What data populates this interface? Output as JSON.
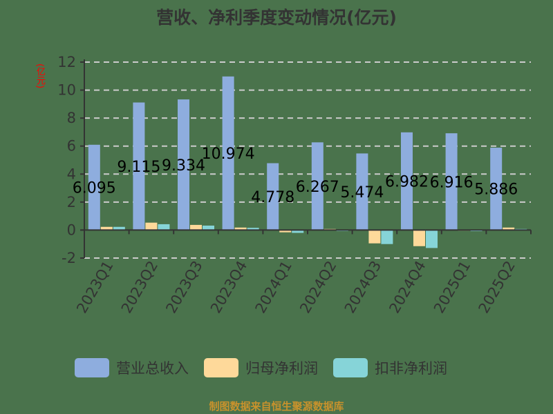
{
  "title": "营收、净利季度变动情况(亿元)",
  "unit_label": "(亿元)",
  "footer": "制图数据来自恒生聚源数据库",
  "legend": [
    {
      "label": "营业总收入",
      "color": "#8eadde"
    },
    {
      "label": "归母净利润",
      "color": "#fed99a"
    },
    {
      "label": "扣非净利润",
      "color": "#86d4d8"
    }
  ],
  "chart_data": {
    "type": "bar",
    "title": "营收、净利季度变动情况(亿元)",
    "xlabel": "",
    "ylabel": "(亿元)",
    "ylim": [
      -2,
      12
    ],
    "yticks": [
      -2,
      0,
      2,
      4,
      6,
      8,
      10,
      12
    ],
    "grid": true,
    "legend_position": "bottom",
    "categories": [
      "2023Q1",
      "2023Q2",
      "2023Q3",
      "2023Q4",
      "2024Q1",
      "2024Q2",
      "2024Q3",
      "2024Q4",
      "2025Q1",
      "2025Q2"
    ],
    "series": [
      {
        "name": "营业总收入",
        "color": "#8eadde",
        "values": [
          6.095,
          9.115,
          9.334,
          10.974,
          4.778,
          6.267,
          5.474,
          6.982,
          6.916,
          5.886
        ],
        "labels": [
          "6.095",
          "9.115",
          "9.334",
          "10.974",
          "4.778",
          "6.267",
          "5.474",
          "6.982",
          "6.916",
          "5.886"
        ]
      },
      {
        "name": "归母净利润",
        "color": "#fed99a",
        "values": [
          0.23,
          0.53,
          0.37,
          0.18,
          -0.16,
          0.08,
          -0.95,
          -1.15,
          -0.04,
          0.18
        ]
      },
      {
        "name": "扣非净利润",
        "color": "#86d4d8",
        "values": [
          0.23,
          0.42,
          0.32,
          0.16,
          -0.2,
          -0.07,
          -1.0,
          -1.28,
          -0.08,
          0.08
        ]
      }
    ]
  }
}
